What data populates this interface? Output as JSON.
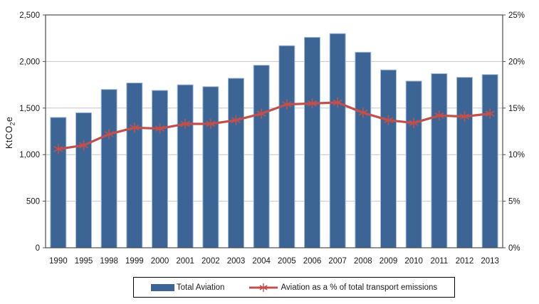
{
  "figure": {
    "y_axis_title": {
      "prefix": "KtCO",
      "sub": "2",
      "suffix": "e"
    },
    "legend": [
      {
        "type": "bar",
        "label": "Total Aviation",
        "color": "#3C6595"
      },
      {
        "type": "line-marker",
        "label": "Aviation as a % of total transport emissions",
        "color": "#C0504D"
      }
    ]
  },
  "chart_data": {
    "type": "bar",
    "subtype": "bar-and-line-dual-axis",
    "title": "",
    "categories": [
      "1990",
      "1995",
      "1998",
      "1999",
      "2000",
      "2001",
      "2002",
      "2003",
      "2004",
      "2005",
      "2006",
      "2007",
      "2008",
      "2009",
      "2010",
      "2011",
      "2012",
      "2013"
    ],
    "series": [
      {
        "name": "Total Aviation",
        "type": "bar",
        "axis": "left",
        "color": "#3C6595",
        "border_color": "#A4BDDB",
        "values": [
          1400,
          1450,
          1700,
          1770,
          1690,
          1750,
          1730,
          1820,
          1960,
          2170,
          2260,
          2300,
          2100,
          1910,
          1790,
          1870,
          1830,
          1860
        ]
      },
      {
        "name": "Aviation as a % of total transport emissions",
        "type": "line",
        "axis": "right",
        "color": "#C0504D",
        "marker": "asterisk",
        "values": [
          10.6,
          11.0,
          12.2,
          12.9,
          12.8,
          13.3,
          13.3,
          13.7,
          14.4,
          15.4,
          15.5,
          15.6,
          14.5,
          13.7,
          13.4,
          14.2,
          14.1,
          14.4
        ]
      }
    ],
    "left_axis": {
      "label": "KtCO2e",
      "min": 0,
      "max": 2500,
      "ticks": [
        {
          "label": "0",
          "value": 0
        },
        {
          "label": "500",
          "value": 500
        },
        {
          "label": "1,000",
          "value": 1000
        },
        {
          "label": "1,500",
          "value": 1500
        },
        {
          "label": "2,000",
          "value": 2000
        },
        {
          "label": "2,500",
          "value": 2500
        }
      ]
    },
    "right_axis": {
      "label": "",
      "min": 0,
      "max": 25,
      "ticks": [
        {
          "label": "0%",
          "value": 0
        },
        {
          "label": "5%",
          "value": 5
        },
        {
          "label": "10%",
          "value": 10
        },
        {
          "label": "15%",
          "value": 15
        },
        {
          "label": "20%",
          "value": 20
        },
        {
          "label": "25%",
          "value": 25
        }
      ]
    },
    "grid": true,
    "legend_position": "bottom",
    "colors": {
      "gridline": "#C6C6C6",
      "axis": "#4D4D4D",
      "text": "#1A1A1A"
    }
  }
}
